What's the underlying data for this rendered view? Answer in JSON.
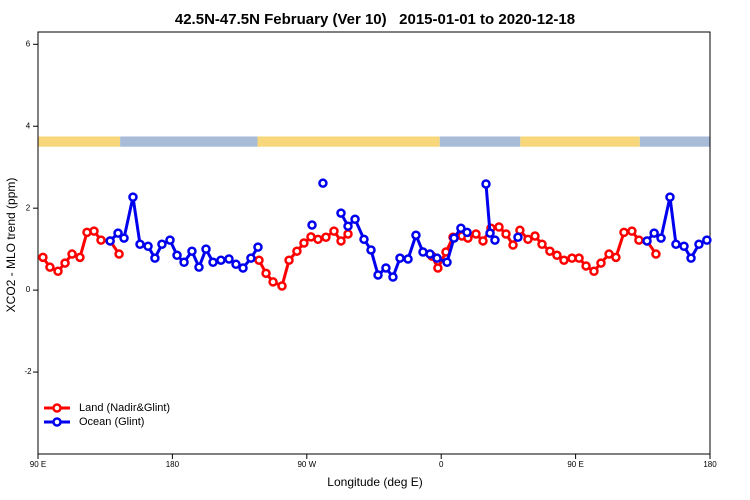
{
  "chart_data": {
    "type": "line",
    "title": "42.5N-47.5N February (Ver 10)   2015-01-01 to 2020-12-18",
    "x_label": "Longitude (deg E)",
    "y_label": "XCO2 - MLO trend (ppm)",
    "xlim": [
      90,
      540
    ],
    "ylim": [
      -4,
      6.3
    ],
    "xticks": [
      {
        "value": 90,
        "label": "90 E"
      },
      {
        "value": 180,
        "label": "180"
      },
      {
        "value": 270,
        "label": "90 W"
      },
      {
        "value": 360,
        "label": "0"
      },
      {
        "value": 450,
        "label": "90 E"
      },
      {
        "value": 540,
        "label": "180"
      }
    ],
    "yticks": [
      -2,
      0,
      2,
      4,
      6
    ],
    "legend": "bottom-left",
    "surface_strip": {
      "ylim": [
        3.5,
        3.75
      ],
      "segments": [
        {
          "start": 90,
          "end": 145,
          "color": "#f7d77a"
        },
        {
          "start": 145,
          "end": 237,
          "color": "#a8bcd8"
        },
        {
          "start": 237,
          "end": 359,
          "color": "#f7d77a"
        },
        {
          "start": 359,
          "end": 413,
          "color": "#a8bcd8"
        },
        {
          "start": 413,
          "end": 493,
          "color": "#f7d77a"
        },
        {
          "start": 493,
          "end": 540,
          "color": "#a8bcd8"
        }
      ]
    },
    "series": [
      {
        "name": "Land (Nadir&Glint)",
        "color": "#ff0000",
        "x": [
          93.3,
          98.0,
          103.4,
          108.1,
          112.8,
          118.1,
          122.8,
          127.5,
          132.2,
          138.3,
          144.3,
          null,
          238.0,
          242.7,
          247.4,
          253.4,
          258.1,
          263.4,
          268.1,
          272.8,
          277.5,
          282.8,
          288.2,
          292.9,
          297.6,
          null,
          353.8,
          357.8,
          363.2,
          367.9,
          373.9,
          377.9,
          383.3,
          388.0,
          393.3,
          398.7,
          403.4,
          408.1,
          412.7,
          418.1,
          422.8,
          427.5,
          432.8,
          437.5,
          442.2,
          447.6,
          452.3,
          457.0,
          462.3,
          467.0,
          472.4,
          477.0,
          482.4,
          487.7,
          492.4,
          497.8,
          503.8
        ],
        "values": [
          0.8,
          0.56,
          0.46,
          0.66,
          0.88,
          0.8,
          1.41,
          1.44,
          1.22,
          1.2,
          0.88,
          null,
          0.73,
          0.41,
          0.2,
          0.1,
          0.73,
          0.95,
          1.15,
          1.3,
          1.24,
          1.29,
          1.44,
          1.2,
          1.37,
          null,
          0.83,
          0.54,
          0.93,
          1.29,
          1.32,
          1.27,
          1.37,
          1.2,
          1.51,
          1.54,
          1.37,
          1.1,
          1.46,
          1.24,
          1.32,
          1.12,
          0.95,
          0.85,
          0.73,
          0.78,
          0.78,
          0.59,
          0.46,
          0.66,
          0.88,
          0.8,
          1.41,
          1.44,
          1.22,
          1.2,
          0.88
        ]
      },
      {
        "name": "Ocean (Glint)",
        "color": "#0000ee",
        "x": [
          138.3,
          143.6,
          147.6,
          153.6,
          158.3,
          163.7,
          168.3,
          173.0,
          178.4,
          183.1,
          187.8,
          193.1,
          197.8,
          202.5,
          207.2,
          212.5,
          217.9,
          222.6,
          227.3,
          232.6,
          237.3,
          null,
          273.5,
          null,
          280.8,
          null,
          292.9,
          297.6,
          302.3,
          308.3,
          313.0,
          317.7,
          323.0,
          327.7,
          332.4,
          337.8,
          343.1,
          347.8,
          352.5,
          357.2,
          363.9,
          368.6,
          373.2,
          377.3,
          null,
          390.0,
          392.7,
          396.0,
          null,
          411.4,
          null,
          497.8,
          502.6,
          507.2,
          513.2,
          517.2,
          522.6,
          527.3,
          532.6,
          537.9
        ],
        "values": [
          1.2,
          1.39,
          1.27,
          2.27,
          1.12,
          1.07,
          0.78,
          1.12,
          1.22,
          0.85,
          0.68,
          0.95,
          0.56,
          1.0,
          0.68,
          0.73,
          0.76,
          0.63,
          0.54,
          0.78,
          1.05,
          null,
          1.59,
          null,
          2.61,
          null,
          1.88,
          1.56,
          1.73,
          1.24,
          0.98,
          0.37,
          0.54,
          0.32,
          0.78,
          0.76,
          1.34,
          0.93,
          0.88,
          0.78,
          0.68,
          1.27,
          1.51,
          1.41,
          null,
          2.59,
          1.39,
          1.22,
          null,
          1.29,
          null,
          1.2,
          1.39,
          1.27,
          2.27,
          1.12,
          1.07,
          0.78,
          1.12,
          1.22
        ]
      }
    ]
  }
}
